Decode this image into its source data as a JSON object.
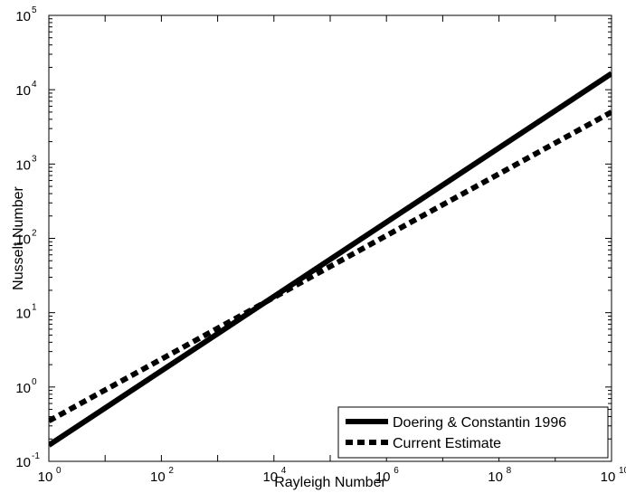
{
  "chart_data": {
    "type": "line",
    "xlabel": "Rayleigh Number",
    "ylabel": "Nusselt Number",
    "xscale": "log",
    "yscale": "log",
    "xlim": [
      1,
      10000000000
    ],
    "ylim": [
      0.1,
      100000
    ],
    "x_ticks": [
      {
        "base": "10",
        "exp": "0"
      },
      {
        "base": "10",
        "exp": "2"
      },
      {
        "base": "10",
        "exp": "4"
      },
      {
        "base": "10",
        "exp": "6"
      },
      {
        "base": "10",
        "exp": "8"
      },
      {
        "base": "10",
        "exp": "10"
      }
    ],
    "y_ticks": [
      {
        "base": "10",
        "exp": "-1"
      },
      {
        "base": "10",
        "exp": "0"
      },
      {
        "base": "10",
        "exp": "1"
      },
      {
        "base": "10",
        "exp": "2"
      },
      {
        "base": "10",
        "exp": "3"
      },
      {
        "base": "10",
        "exp": "4"
      },
      {
        "base": "10",
        "exp": "5"
      }
    ],
    "grid": false,
    "legend_position": "bottom-right",
    "series": [
      {
        "name": "Doering & Constantin 1996",
        "style": "solid",
        "color": "#000000",
        "x": [
          1,
          10000000000
        ],
        "y": [
          0.165,
          16500
        ]
      },
      {
        "name": "Current Estimate",
        "style": "dashed",
        "color": "#000000",
        "x": [
          1,
          10000000000
        ],
        "y": [
          0.35,
          5000
        ]
      }
    ]
  }
}
